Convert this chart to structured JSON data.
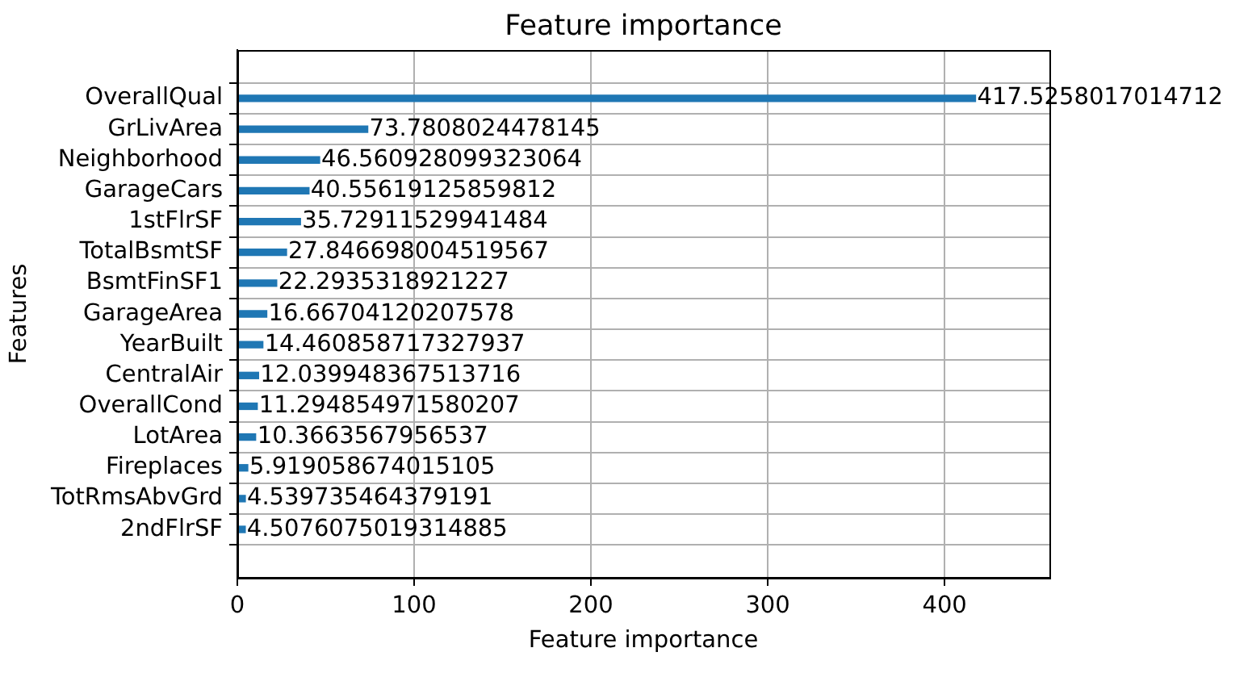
{
  "chart_data": {
    "type": "bar",
    "orientation": "horizontal",
    "title": "Feature importance",
    "xlabel": "Feature importance",
    "ylabel": "Features",
    "categories": [
      "OverallQual",
      "GrLivArea",
      "Neighborhood",
      "GarageCars",
      "1stFlrSF",
      "TotalBsmtSF",
      "BsmtFinSF1",
      "GarageArea",
      "YearBuilt",
      "CentralAir",
      "OverallCond",
      "LotArea",
      "Fireplaces",
      "TotRmsAbvGrd",
      "2ndFlrSF"
    ],
    "values": [
      417.5258017014712,
      73.7808024478145,
      46.560928099323064,
      40.55619125859812,
      35.72911529941484,
      27.846698004519567,
      22.2935318921227,
      16.66704120207578,
      14.460858717327937,
      12.039948367513716,
      11.294854971580207,
      10.3663567956537,
      5.919058674015105,
      4.539735464379191,
      4.5076075019314885
    ],
    "color": "#1f77b4",
    "xlim": [
      0,
      459.3
    ],
    "xticks": [
      0,
      100,
      200,
      300,
      400
    ],
    "grid": true,
    "data_labels": true
  }
}
